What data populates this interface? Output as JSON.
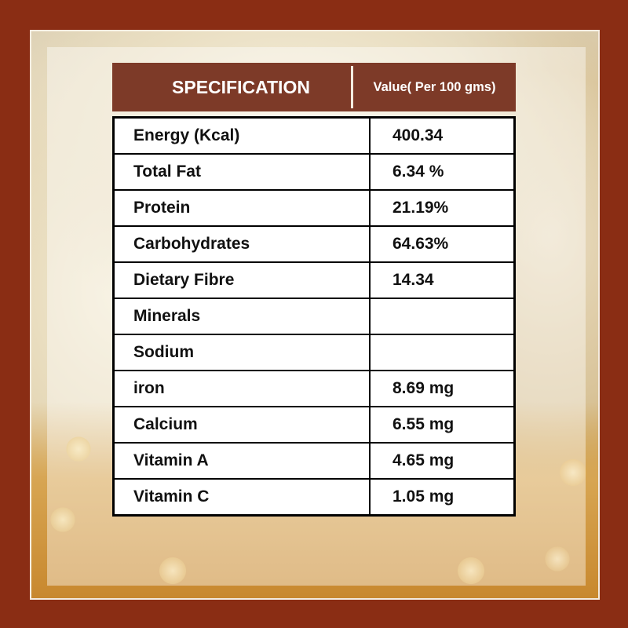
{
  "table": {
    "header": {
      "specification": "SPECIFICATION",
      "value": "Value( Per 100 gms)"
    },
    "rows": [
      {
        "name": "Energy (Kcal)",
        "value": "400.34"
      },
      {
        "name": "Total Fat",
        "value": "6.34 %"
      },
      {
        "name": "Protein",
        "value": "21.19%"
      },
      {
        "name": "Carbohydrates",
        "value": "64.63%"
      },
      {
        "name": "Dietary Fibre",
        "value": "14.34"
      },
      {
        "name": "Minerals",
        "value": ""
      },
      {
        "name": "Sodium",
        "value": ""
      },
      {
        "name": "iron",
        "value": "8.69 mg"
      },
      {
        "name": "Calcium",
        "value": "6.55 mg"
      },
      {
        "name": "Vitamin A",
        "value": "4.65 mg"
      },
      {
        "name": "Vitamin C",
        "value": "1.05 mg"
      }
    ]
  },
  "colors": {
    "frame": "#8a2d14",
    "header": "#7d3a28"
  }
}
